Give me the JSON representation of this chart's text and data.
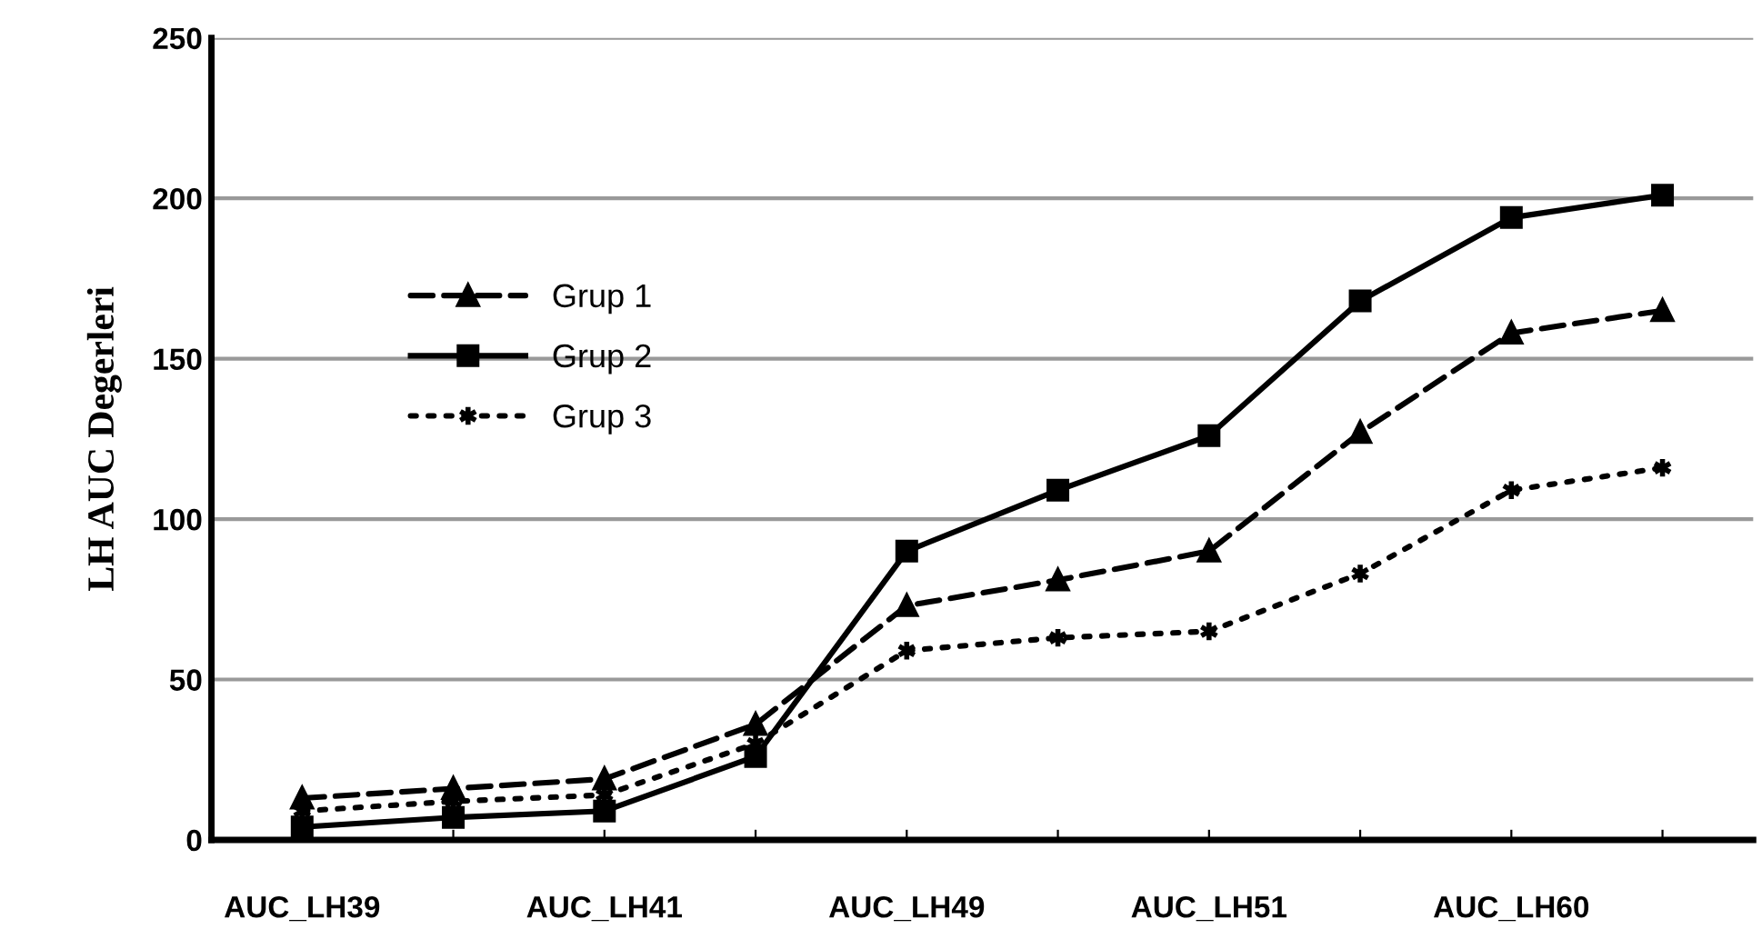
{
  "chart_data": {
    "type": "line",
    "ylabel": "LH AUC Degerleri",
    "categories": [
      "AUC_LH39",
      null,
      "AUC_LH41",
      null,
      "AUC_LH49",
      null,
      "AUC_LH51",
      null,
      "AUC_LH60",
      null
    ],
    "series": [
      {
        "name": "Grup 1",
        "color": "#000000",
        "marker": "triangle",
        "line_style": "dashed",
        "values": [
          13,
          16,
          19,
          36,
          73,
          81,
          90,
          127,
          158,
          165
        ]
      },
      {
        "name": "Grup 2",
        "color": "#000000",
        "marker": "square",
        "line_style": "solid",
        "values": [
          4,
          7,
          9,
          26,
          90,
          109,
          126,
          168,
          194,
          201
        ]
      },
      {
        "name": "Grup 3",
        "color": "#000000",
        "marker": "cross",
        "line_style": "dotted",
        "values": [
          9,
          12,
          14,
          30,
          59,
          63,
          65,
          83,
          109,
          116
        ]
      }
    ],
    "ylim": [
      0,
      250
    ],
    "yticks": [
      0,
      50,
      100,
      150,
      200,
      250
    ],
    "grid": "y",
    "legend": "left"
  }
}
